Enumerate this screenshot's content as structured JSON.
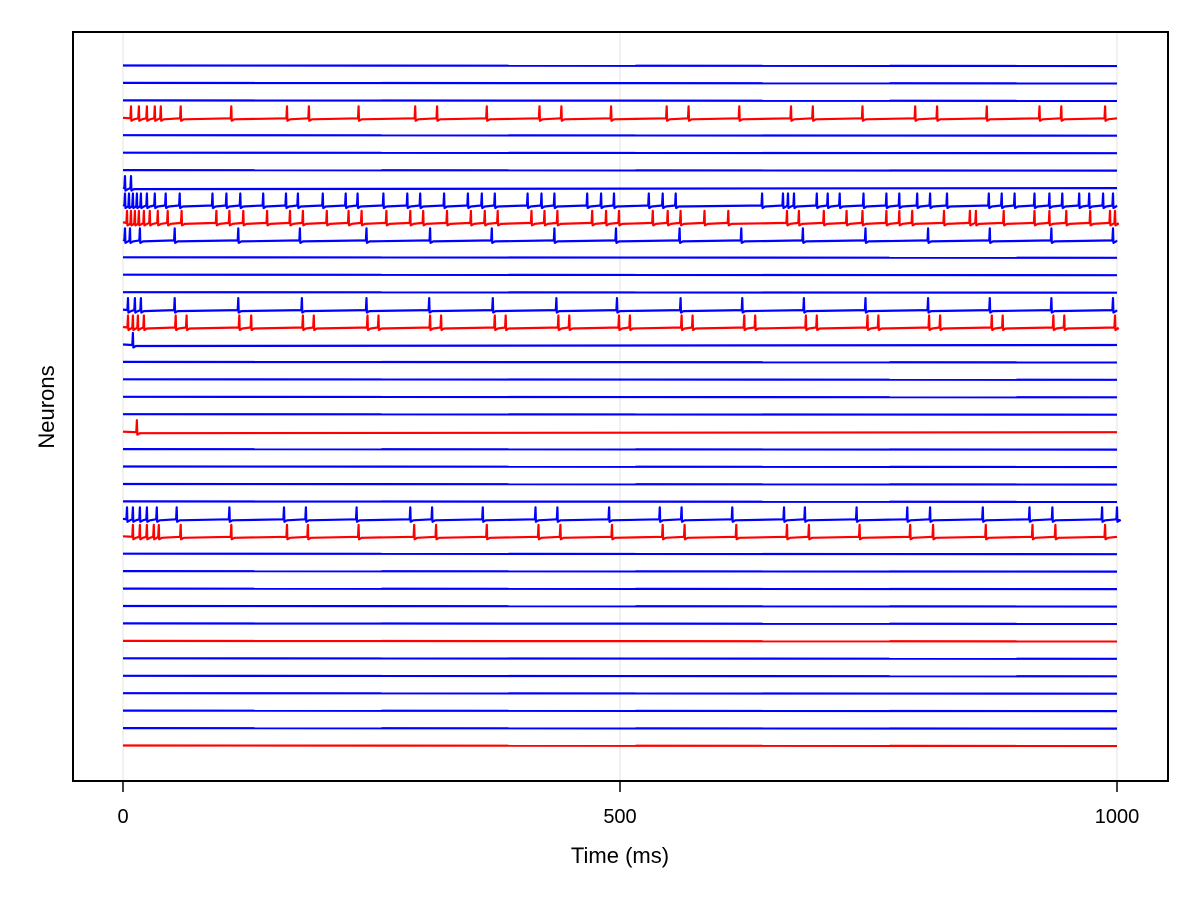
{
  "chart_data": {
    "type": "line",
    "subtype": "stacked-voltage-traces",
    "title": "",
    "xlabel": "Time (ms)",
    "ylabel": "Neurons",
    "xlim": [
      0,
      1000
    ],
    "x_ticks": [
      0,
      500,
      1000
    ],
    "x_tick_labels": [
      "0",
      "500",
      "1000"
    ],
    "y_ticks": [],
    "grid": {
      "x": true,
      "y": false
    },
    "legend": null,
    "colors": {
      "excitatory": "#0000ff",
      "inhibitory": "#ff0000",
      "frame": "#000000",
      "grid": "#e0e0e0"
    },
    "neurons": [
      {
        "id": 1,
        "color": "blue",
        "spikes_ms": []
      },
      {
        "id": 2,
        "color": "blue",
        "spikes_ms": []
      },
      {
        "id": 3,
        "color": "blue",
        "spikes_ms": []
      },
      {
        "id": 4,
        "color": "red",
        "spikes_ms": [
          8,
          16,
          24,
          32,
          38,
          58,
          109,
          165,
          187,
          237,
          294,
          316,
          366,
          419,
          441,
          491,
          547,
          569,
          620,
          672,
          694,
          744,
          797,
          819,
          869,
          922,
          944,
          988
        ]
      },
      {
        "id": 5,
        "color": "blue",
        "spikes_ms": []
      },
      {
        "id": 6,
        "color": "blue",
        "spikes_ms": []
      },
      {
        "id": 7,
        "color": "blue",
        "spikes_ms": []
      },
      {
        "id": 8,
        "color": "blue",
        "spikes_ms": [
          2,
          8
        ]
      },
      {
        "id": 9,
        "color": "blue",
        "spikes_ms": [
          2,
          6,
          10,
          14,
          18,
          24,
          32,
          43,
          57,
          90,
          104,
          118,
          141,
          164,
          176,
          201,
          224,
          236,
          262,
          286,
          299,
          323,
          347,
          361,
          374,
          407,
          421,
          434,
          467,
          481,
          494,
          529,
          543,
          556,
          643,
          669,
          664,
          675,
          698,
          709,
          721,
          745,
          768,
          781,
          799,
          812,
          829,
          871,
          884,
          897,
          917,
          932,
          945,
          962,
          972,
          986,
          996
        ]
      },
      {
        "id": 10,
        "color": "red",
        "spikes_ms": [
          4,
          8,
          12,
          16,
          21,
          27,
          35,
          45,
          59,
          94,
          107,
          121,
          145,
          168,
          181,
          205,
          227,
          240,
          265,
          289,
          302,
          326,
          350,
          364,
          377,
          411,
          424,
          437,
          472,
          486,
          499,
          533,
          548,
          561,
          585,
          609,
          668,
          680,
          705,
          728,
          744,
          768,
          781,
          794,
          826,
          852,
          858,
          886,
          917,
          932,
          949,
          973,
          993,
          998
        ]
      },
      {
        "id": 11,
        "color": "blue",
        "spikes_ms": [
          2,
          7,
          17,
          52,
          116,
          178,
          245,
          309,
          371,
          434,
          496,
          560,
          622,
          684,
          747,
          810,
          872,
          934,
          996
        ]
      },
      {
        "id": 12,
        "color": "blue",
        "spikes_ms": []
      },
      {
        "id": 13,
        "color": "blue",
        "spikes_ms": []
      },
      {
        "id": 14,
        "color": "blue",
        "spikes_ms": []
      },
      {
        "id": 15,
        "color": "blue",
        "spikes_ms": [
          5,
          12,
          18,
          52,
          116,
          180,
          245,
          308,
          372,
          436,
          497,
          561,
          623,
          685,
          747,
          810,
          872,
          934,
          996
        ]
      },
      {
        "id": 16,
        "color": "red",
        "spikes_ms": [
          5,
          10,
          15,
          21,
          53,
          64,
          117,
          129,
          181,
          192,
          246,
          257,
          309,
          320,
          374,
          385,
          438,
          449,
          499,
          510,
          562,
          573,
          625,
          636,
          687,
          698,
          749,
          760,
          811,
          822,
          874,
          885,
          936,
          947,
          998
        ]
      },
      {
        "id": 17,
        "color": "blue",
        "spikes_ms": [
          10
        ]
      },
      {
        "id": 18,
        "color": "blue",
        "spikes_ms": []
      },
      {
        "id": 19,
        "color": "blue",
        "spikes_ms": []
      },
      {
        "id": 20,
        "color": "blue",
        "spikes_ms": []
      },
      {
        "id": 21,
        "color": "blue",
        "spikes_ms": []
      },
      {
        "id": 22,
        "color": "red",
        "spikes_ms": [
          14
        ]
      },
      {
        "id": 23,
        "color": "blue",
        "spikes_ms": []
      },
      {
        "id": 24,
        "color": "blue",
        "spikes_ms": []
      },
      {
        "id": 25,
        "color": "blue",
        "spikes_ms": []
      },
      {
        "id": 26,
        "color": "blue",
        "spikes_ms": []
      },
      {
        "id": 27,
        "color": "blue",
        "spikes_ms": [
          4,
          10,
          17,
          24,
          34,
          54,
          107,
          162,
          184,
          235,
          289,
          311,
          362,
          415,
          437,
          489,
          540,
          562,
          613,
          665,
          686,
          738,
          789,
          812,
          865,
          912,
          935,
          985,
          1000
        ]
      },
      {
        "id": 28,
        "color": "red",
        "spikes_ms": [
          10,
          17,
          24,
          31,
          36,
          58,
          109,
          165,
          186,
          237,
          293,
          315,
          366,
          418,
          440,
          492,
          543,
          565,
          617,
          668,
          690,
          741,
          792,
          815,
          868,
          915,
          938,
          988
        ]
      },
      {
        "id": 29,
        "color": "blue",
        "spikes_ms": []
      },
      {
        "id": 30,
        "color": "blue",
        "spikes_ms": []
      },
      {
        "id": 31,
        "color": "blue",
        "spikes_ms": []
      },
      {
        "id": 32,
        "color": "blue",
        "spikes_ms": []
      },
      {
        "id": 33,
        "color": "blue",
        "spikes_ms": []
      },
      {
        "id": 34,
        "color": "red",
        "spikes_ms": []
      },
      {
        "id": 35,
        "color": "blue",
        "spikes_ms": []
      },
      {
        "id": 36,
        "color": "blue",
        "spikes_ms": []
      },
      {
        "id": 37,
        "color": "blue",
        "spikes_ms": []
      },
      {
        "id": 38,
        "color": "blue",
        "spikes_ms": []
      },
      {
        "id": 39,
        "color": "blue",
        "spikes_ms": []
      },
      {
        "id": 40,
        "color": "red",
        "spikes_ms": []
      }
    ]
  },
  "axes": {
    "x_label": "Time (ms)",
    "y_label": "Neurons",
    "x_tick_0": "0",
    "x_tick_500": "500",
    "x_tick_1000": "1000"
  }
}
